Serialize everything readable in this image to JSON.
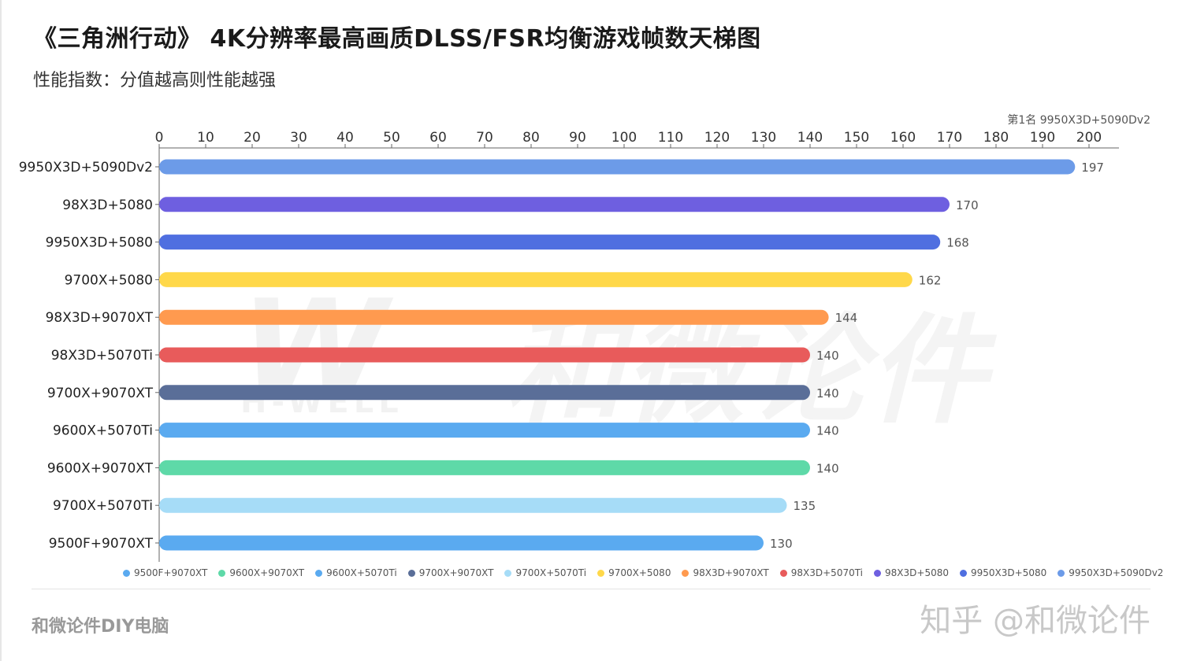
{
  "header": {
    "title": "《三角洲行动》 4K分辨率最高画质DLSS/FSR均衡游戏帧数天梯图",
    "subtitle": "性能指数：分值越高则性能越强",
    "rank_note": "第1名 9950X3D+5090Dv2"
  },
  "watermark": {
    "logo": "W",
    "brand_cn": "和微论件",
    "brand_en": "H-WELL"
  },
  "footer": {
    "left": "和微论件DIY电脑",
    "right": "知乎 @和微论件"
  },
  "chart_data": {
    "type": "bar",
    "orientation": "horizontal",
    "categories": [
      "9950X3D+5090Dv2",
      "98X3D+5080",
      "9950X3D+5080",
      "9700X+5080",
      "98X3D+9070XT",
      "98X3D+5070Ti",
      "9700X+9070XT",
      "9600X+5070Ti",
      "9600X+9070XT",
      "9700X+5070Ti",
      "9500F+9070XT"
    ],
    "values": [
      197,
      170,
      168,
      162,
      144,
      140,
      140,
      140,
      140,
      135,
      130
    ],
    "colors": [
      "#6c9be8",
      "#6e5fe0",
      "#4f6fe0",
      "#ffd84a",
      "#ff9a4f",
      "#e85b5b",
      "#5a6e98",
      "#5aaaf0",
      "#5ed9a8",
      "#a6dcf7",
      "#5aaaf0"
    ],
    "xlim": [
      0,
      200
    ],
    "xticks": [
      0,
      10,
      20,
      30,
      40,
      50,
      60,
      70,
      80,
      90,
      100,
      110,
      120,
      130,
      140,
      150,
      160,
      170,
      180,
      190,
      200
    ],
    "axis_position": "top",
    "legend_position": "bottom",
    "legend": [
      {
        "name": "9500F+9070XT",
        "color": "#5aaaf0"
      },
      {
        "name": "9600X+9070XT",
        "color": "#5ed9a8"
      },
      {
        "name": "9600X+5070Ti",
        "color": "#5aaaf0"
      },
      {
        "name": "9700X+9070XT",
        "color": "#5a6e98"
      },
      {
        "name": "9700X+5070Ti",
        "color": "#a6dcf7"
      },
      {
        "name": "9700X+5080",
        "color": "#ffd84a"
      },
      {
        "name": "98X3D+9070XT",
        "color": "#ff9a4f"
      },
      {
        "name": "98X3D+5070Ti",
        "color": "#e85b5b"
      },
      {
        "name": "98X3D+5080",
        "color": "#6e5fe0"
      },
      {
        "name": "9950X3D+5080",
        "color": "#4f6fe0"
      },
      {
        "name": "9950X3D+5090Dv2",
        "color": "#6c9be8"
      }
    ]
  }
}
